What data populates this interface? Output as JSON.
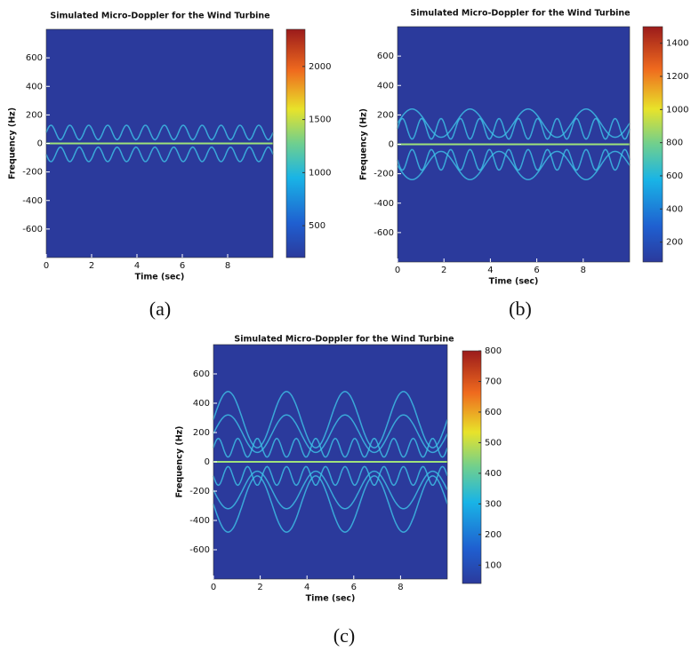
{
  "chart_data": [
    {
      "type": "spectrogram",
      "title": "Simulated Micro-Doppler for the Wind Turbine",
      "xlabel": "Time (sec)",
      "ylabel": "Frequency (Hz)",
      "label": "(a)",
      "xlim": [
        0,
        10
      ],
      "xticks": [
        0,
        2,
        4,
        6,
        8
      ],
      "ylim": [
        -800,
        800
      ],
      "yticks": [
        -600,
        -400,
        -200,
        0,
        200,
        400,
        600
      ],
      "clim": [
        200,
        2350
      ],
      "cticks": [
        500,
        1000,
        1500,
        2000
      ],
      "colormap": "jet",
      "background": "#2b3a9c"
    },
    {
      "type": "spectrogram",
      "title": "Simulated Micro-Doppler for the Wind Turbine",
      "xlabel": "Time (sec)",
      "ylabel": "Frequency (Hz)",
      "label": "(b)",
      "xlim": [
        0,
        10
      ],
      "xticks": [
        0,
        2,
        4,
        6,
        8
      ],
      "ylim": [
        -800,
        800
      ],
      "yticks": [
        -600,
        -400,
        -200,
        0,
        200,
        400,
        600
      ],
      "clim": [
        80,
        1500
      ],
      "cticks": [
        200,
        400,
        600,
        800,
        1000,
        1200,
        1400
      ],
      "colormap": "jet",
      "background": "#2b3a9c"
    },
    {
      "type": "spectrogram",
      "title": "Simulated Micro-Doppler for the Wind Turbine",
      "xlabel": "Time (sec)",
      "ylabel": "Frequency (Hz)",
      "label": "(c)",
      "xlim": [
        0,
        10
      ],
      "xticks": [
        0,
        2,
        4,
        6,
        8
      ],
      "ylim": [
        -800,
        800
      ],
      "yticks": [
        -600,
        -400,
        -200,
        0,
        200,
        400,
        600
      ],
      "clim": [
        40,
        800
      ],
      "cticks": [
        100,
        200,
        300,
        400,
        500,
        600,
        700,
        800
      ],
      "colormap": "jet",
      "background": "#2b3a9c"
    }
  ]
}
